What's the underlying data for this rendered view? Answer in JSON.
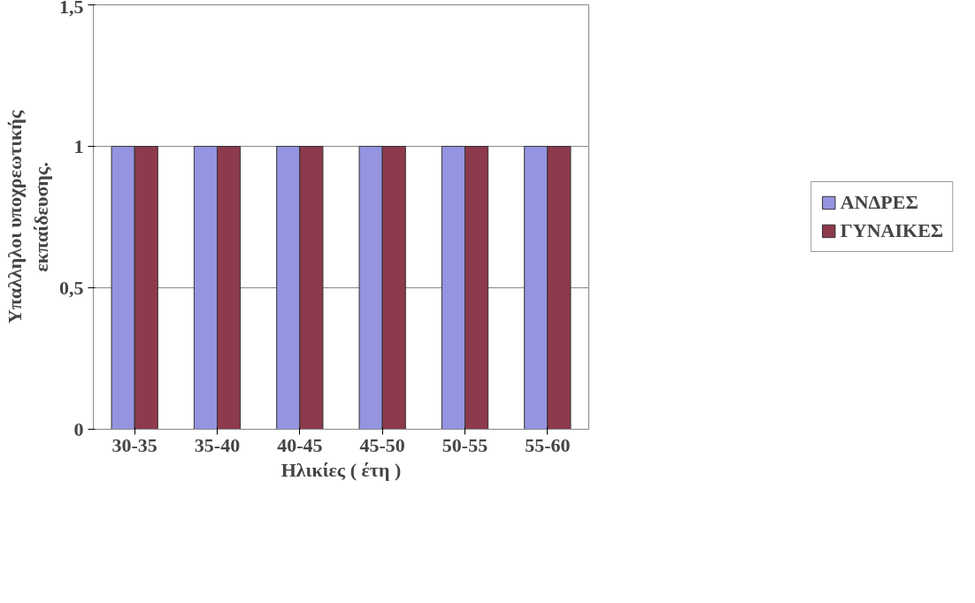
{
  "chart_data": {
    "type": "bar",
    "xlabel": "Ηλικίες ( έτη )",
    "ylabel": "Υπαλληλοι υποχρεωτικής\nεκπαίδευσης.",
    "categories": [
      "30-35",
      "35-40",
      "40-45",
      "45-50",
      "50-55",
      "55-60"
    ],
    "series": [
      {
        "name": "ΑΝΔΡΕΣ",
        "color": "#9494e0",
        "values": [
          1,
          1,
          1,
          1,
          1,
          1
        ]
      },
      {
        "name": "ΓΥΝΑΙΚΕΣ",
        "color": "#8c3a4c",
        "values": [
          1,
          1,
          1,
          1,
          1,
          1
        ]
      }
    ],
    "ylim": [
      0,
      1.5
    ],
    "yticks": [
      0,
      {
        "value": 0.5,
        "label": "0,5"
      },
      1,
      {
        "value": 1.5,
        "label": "1,5"
      }
    ],
    "grid": "y",
    "legend": "right"
  }
}
